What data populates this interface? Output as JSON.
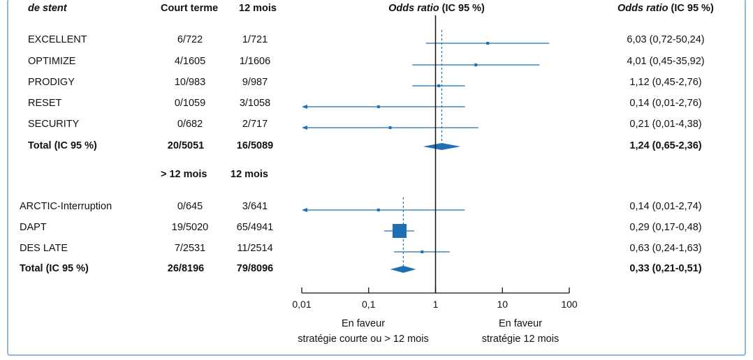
{
  "headers": {
    "col_study_prefix": "de ",
    "col_study_em": "stent",
    "col_short": "Court terme",
    "col_12": "12 mois",
    "col_forest_em": "Odds ratio",
    "col_forest_rest": " (IC 95 %)",
    "col_or_em": "Odds ratio",
    "col_or_rest": " (IC 95 %)"
  },
  "group2_headers": {
    "left": "> 12 mois",
    "right": "12 mois"
  },
  "chart_data": {
    "type": "forest",
    "x_scale": "log",
    "xlim": [
      0.01,
      100
    ],
    "x_ticks": [
      {
        "value": 0.01,
        "label": "0,01"
      },
      {
        "value": 0.1,
        "label": "0,1"
      },
      {
        "value": 1,
        "label": "1"
      },
      {
        "value": 10,
        "label": "10"
      },
      {
        "value": 100,
        "label": "100"
      }
    ],
    "xlabel_left": [
      "En faveur",
      "stratégie courte ou > 12 mois"
    ],
    "xlabel_right": [
      "En faveur",
      "stratégie  12 mois"
    ],
    "color": "#1f6fb5",
    "groups": [
      {
        "studies": [
          {
            "name": "EXCELLENT",
            "a": "6/722",
            "b": "1/721",
            "or": 6.03,
            "lo": 0.72,
            "hi": 50.24,
            "label": "6,03 (0,72-50,24)"
          },
          {
            "name": "OPTIMIZE",
            "a": "4/1605",
            "b": "1/1606",
            "or": 4.01,
            "lo": 0.45,
            "hi": 35.92,
            "label": "4,01 (0,45-35,92)"
          },
          {
            "name": "PRODIGY",
            "a": "10/983",
            "b": "9/987",
            "or": 1.12,
            "lo": 0.45,
            "hi": 2.76,
            "label": "1,12 (0,45-2,76)"
          },
          {
            "name": "RESET",
            "a": "0/1059",
            "b": "3/1058",
            "or": 0.14,
            "lo": 0.01,
            "hi": 2.76,
            "label": "0,14 (0,01-2,76)"
          },
          {
            "name": "SECURITY",
            "a": "0/682",
            "b": "2/717",
            "or": 0.21,
            "lo": 0.01,
            "hi": 4.38,
            "label": "0,21 (0,01-4,38)"
          }
        ],
        "total": {
          "name": "Total (IC 95 %)",
          "a": "20/5051",
          "b": "16/5089",
          "or": 1.24,
          "lo": 0.65,
          "hi": 2.36,
          "label": "1,24 (0,65-2,36)"
        }
      },
      {
        "studies": [
          {
            "name": "ARCTIC-Interruption",
            "a": "0/645",
            "b": "3/641",
            "or": 0.14,
            "lo": 0.01,
            "hi": 2.74,
            "label": "0,14 (0,01-2,74)"
          },
          {
            "name": "DAPT",
            "a": "19/5020",
            "b": "65/4941",
            "or": 0.29,
            "lo": 0.17,
            "hi": 0.48,
            "label": "0,29 (0,17-0,48)"
          },
          {
            "name": "DES LATE",
            "a": "7/2531",
            "b": "11/2514",
            "or": 0.63,
            "lo": 0.24,
            "hi": 1.63,
            "label": "0,63 (0,24-1,63)"
          }
        ],
        "total": {
          "name": "Total (IC 95 %)",
          "a": "26/8196",
          "b": "79/8096",
          "or": 0.33,
          "lo": 0.21,
          "hi": 0.51,
          "label": "0,33 (0,21-0,51)"
        }
      }
    ]
  }
}
